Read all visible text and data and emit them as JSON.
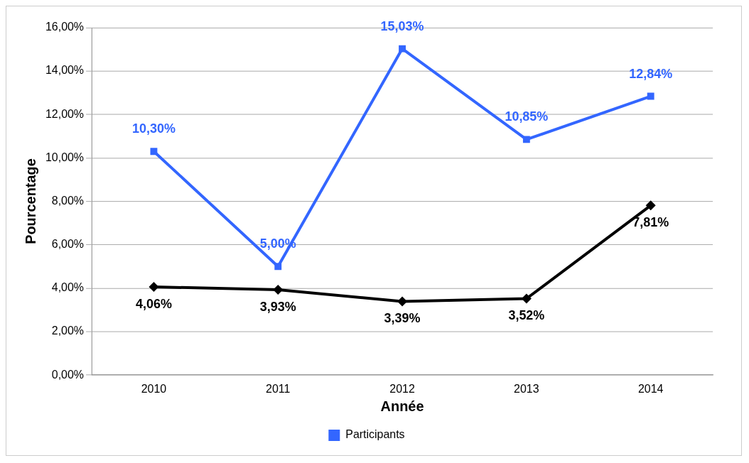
{
  "chart_data": {
    "type": "line",
    "xlabel": "Année",
    "ylabel": "Pourcentage",
    "categories": [
      "2010",
      "2011",
      "2012",
      "2013",
      "2014"
    ],
    "series": [
      {
        "color": "#000000",
        "marker": "diamond",
        "values": [
          4.06,
          3.93,
          3.39,
          3.52,
          7.81
        ],
        "value_labels": [
          "4,06%",
          "3,93%",
          "3,39%",
          "3,52%",
          "7,81%"
        ]
      },
      {
        "name": "Participants",
        "color": "#3366ff",
        "marker": "square",
        "values": [
          10.3,
          5.0,
          15.03,
          10.85,
          12.84
        ],
        "value_labels": [
          "10,30%",
          "5,00%",
          "15,03%",
          "10,85%",
          "12,84%"
        ]
      }
    ],
    "ylim": [
      0,
      16
    ],
    "yticks": [
      {
        "value": 0,
        "label": "0,00%"
      },
      {
        "value": 2,
        "label": "2,00%"
      },
      {
        "value": 4,
        "label": "4,00%"
      },
      {
        "value": 6,
        "label": "6,00%"
      },
      {
        "value": 8,
        "label": "8,00%"
      },
      {
        "value": 10,
        "label": "10,00%"
      },
      {
        "value": 12,
        "label": "12,00%"
      },
      {
        "value": 14,
        "label": "14,00%"
      },
      {
        "value": 16,
        "label": "16,00%"
      }
    ],
    "grid": "y",
    "legend": "bottom",
    "line_style": "solid"
  }
}
